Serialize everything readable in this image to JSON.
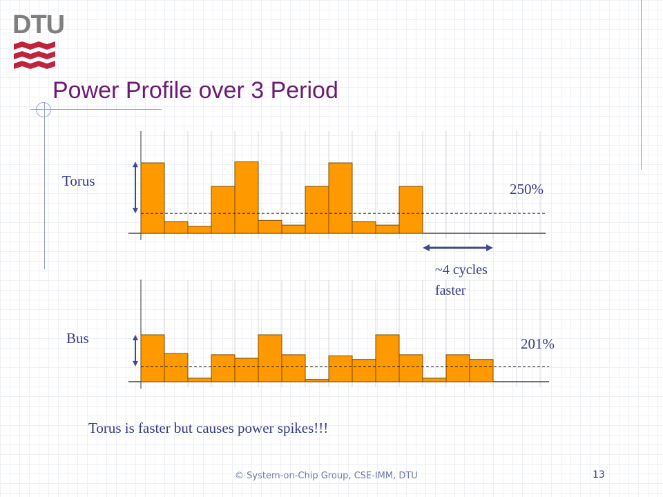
{
  "slide": {
    "logo_text": "DTU",
    "title": "Power Profile over 3 Period",
    "conclusion": "Torus is faster but causes power spikes!!!",
    "footer": "© System-on-Chip Group, CSE-IMM, DTU",
    "page_number": "13"
  },
  "annotation": {
    "line1": "~4 cycles",
    "line2": "faster"
  },
  "colors": {
    "bar": "#ff9900",
    "bar_stroke": "#7a4a00",
    "text": "#333a86",
    "title": "#6b1a72",
    "arrow": "#3d4a8c"
  },
  "chart_data": [
    {
      "type": "bar",
      "name": "Torus",
      "label": "Torus",
      "percent_label": "250%",
      "slots": 17,
      "values": [
        6.0,
        1.0,
        0.6,
        4.0,
        6.1,
        1.1,
        0.7,
        4.0,
        6.0,
        1.0,
        0.7,
        4.0
      ],
      "average": 1.7,
      "ylim": [
        0,
        8
      ]
    },
    {
      "type": "bar",
      "name": "Bus",
      "label": "Bus",
      "percent_label": "201%",
      "slots": 17,
      "values": [
        4.0,
        2.4,
        0.3,
        2.3,
        2.0,
        4.0,
        2.3,
        0.2,
        2.2,
        1.9,
        4.0,
        2.3,
        0.3,
        2.3,
        1.9
      ],
      "average": 1.3,
      "ylim": [
        0,
        8
      ]
    }
  ]
}
